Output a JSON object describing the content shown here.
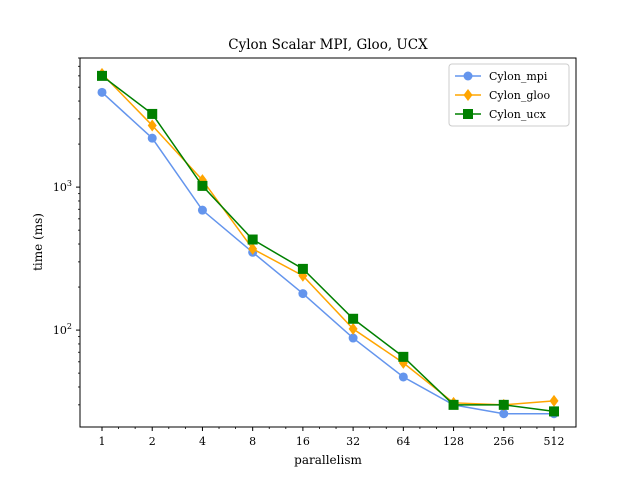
{
  "chart_data": {
    "type": "line",
    "title": "Cylon Scalar MPI, Gloo, UCX",
    "xlabel": "parallelism",
    "ylabel": "time (ms)",
    "x": [
      "1",
      "2",
      "4",
      "8",
      "16",
      "32",
      "64",
      "128",
      "256",
      "512"
    ],
    "y_scale": "log",
    "ylim": [
      21,
      8000
    ],
    "y_tick_labels": [
      "10^2",
      "10^3"
    ],
    "grid": false,
    "legend_position": "upper right",
    "series": [
      {
        "name": "Cylon_mpi",
        "color": "#6495ed",
        "marker": "circle",
        "values": [
          4600,
          2200,
          690,
          350,
          180,
          88,
          47,
          30,
          26,
          26
        ]
      },
      {
        "name": "Cylon_gloo",
        "color": "#ffa500",
        "marker": "diamond",
        "values": [
          6200,
          2700,
          1120,
          370,
          240,
          102,
          59,
          31,
          30,
          32
        ]
      },
      {
        "name": "Cylon_ucx",
        "color": "#008000",
        "marker": "square",
        "values": [
          6000,
          3250,
          1020,
          430,
          268,
          120,
          65,
          30,
          30,
          27
        ]
      }
    ]
  }
}
